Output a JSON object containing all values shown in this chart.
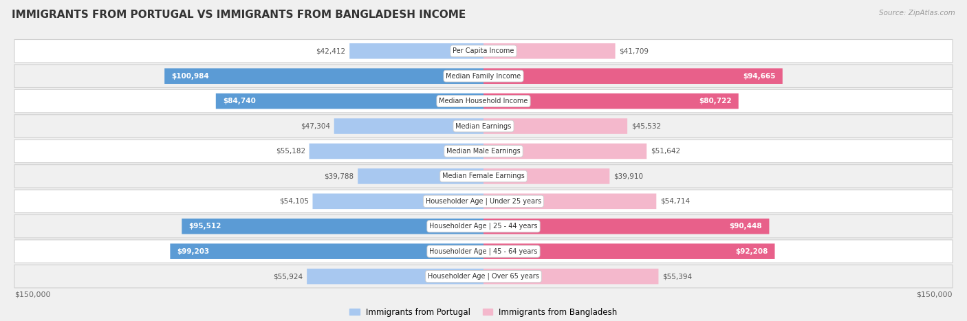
{
  "title": "IMMIGRANTS FROM PORTUGAL VS IMMIGRANTS FROM BANGLADESH INCOME",
  "source": "Source: ZipAtlas.com",
  "categories": [
    "Per Capita Income",
    "Median Family Income",
    "Median Household Income",
    "Median Earnings",
    "Median Male Earnings",
    "Median Female Earnings",
    "Householder Age | Under 25 years",
    "Householder Age | 25 - 44 years",
    "Householder Age | 45 - 64 years",
    "Householder Age | Over 65 years"
  ],
  "portugal_values": [
    42412,
    100984,
    84740,
    47304,
    55182,
    39788,
    54105,
    95512,
    99203,
    55924
  ],
  "bangladesh_values": [
    41709,
    94665,
    80722,
    45532,
    51642,
    39910,
    54714,
    90448,
    92208,
    55394
  ],
  "portugal_labels": [
    "$42,412",
    "$100,984",
    "$84,740",
    "$47,304",
    "$55,182",
    "$39,788",
    "$54,105",
    "$95,512",
    "$99,203",
    "$55,924"
  ],
  "bangladesh_labels": [
    "$41,709",
    "$94,665",
    "$80,722",
    "$45,532",
    "$51,642",
    "$39,910",
    "$54,714",
    "$90,448",
    "$92,208",
    "$55,394"
  ],
  "portugal_color_light": "#a8c8f0",
  "portugal_color_dark": "#5b9bd5",
  "bangladesh_color_light": "#f4b8cc",
  "bangladesh_color_dark": "#e8608a",
  "inside_label_threshold": 0.45,
  "max_value": 150000,
  "x_label_left": "$150,000",
  "x_label_right": "$150,000",
  "legend_portugal": "Immigrants from Portugal",
  "legend_bangladesh": "Immigrants from Bangladesh",
  "background_color": "#f0f0f0",
  "row_bg_even": "#ffffff",
  "row_bg_odd": "#f0f0f0"
}
